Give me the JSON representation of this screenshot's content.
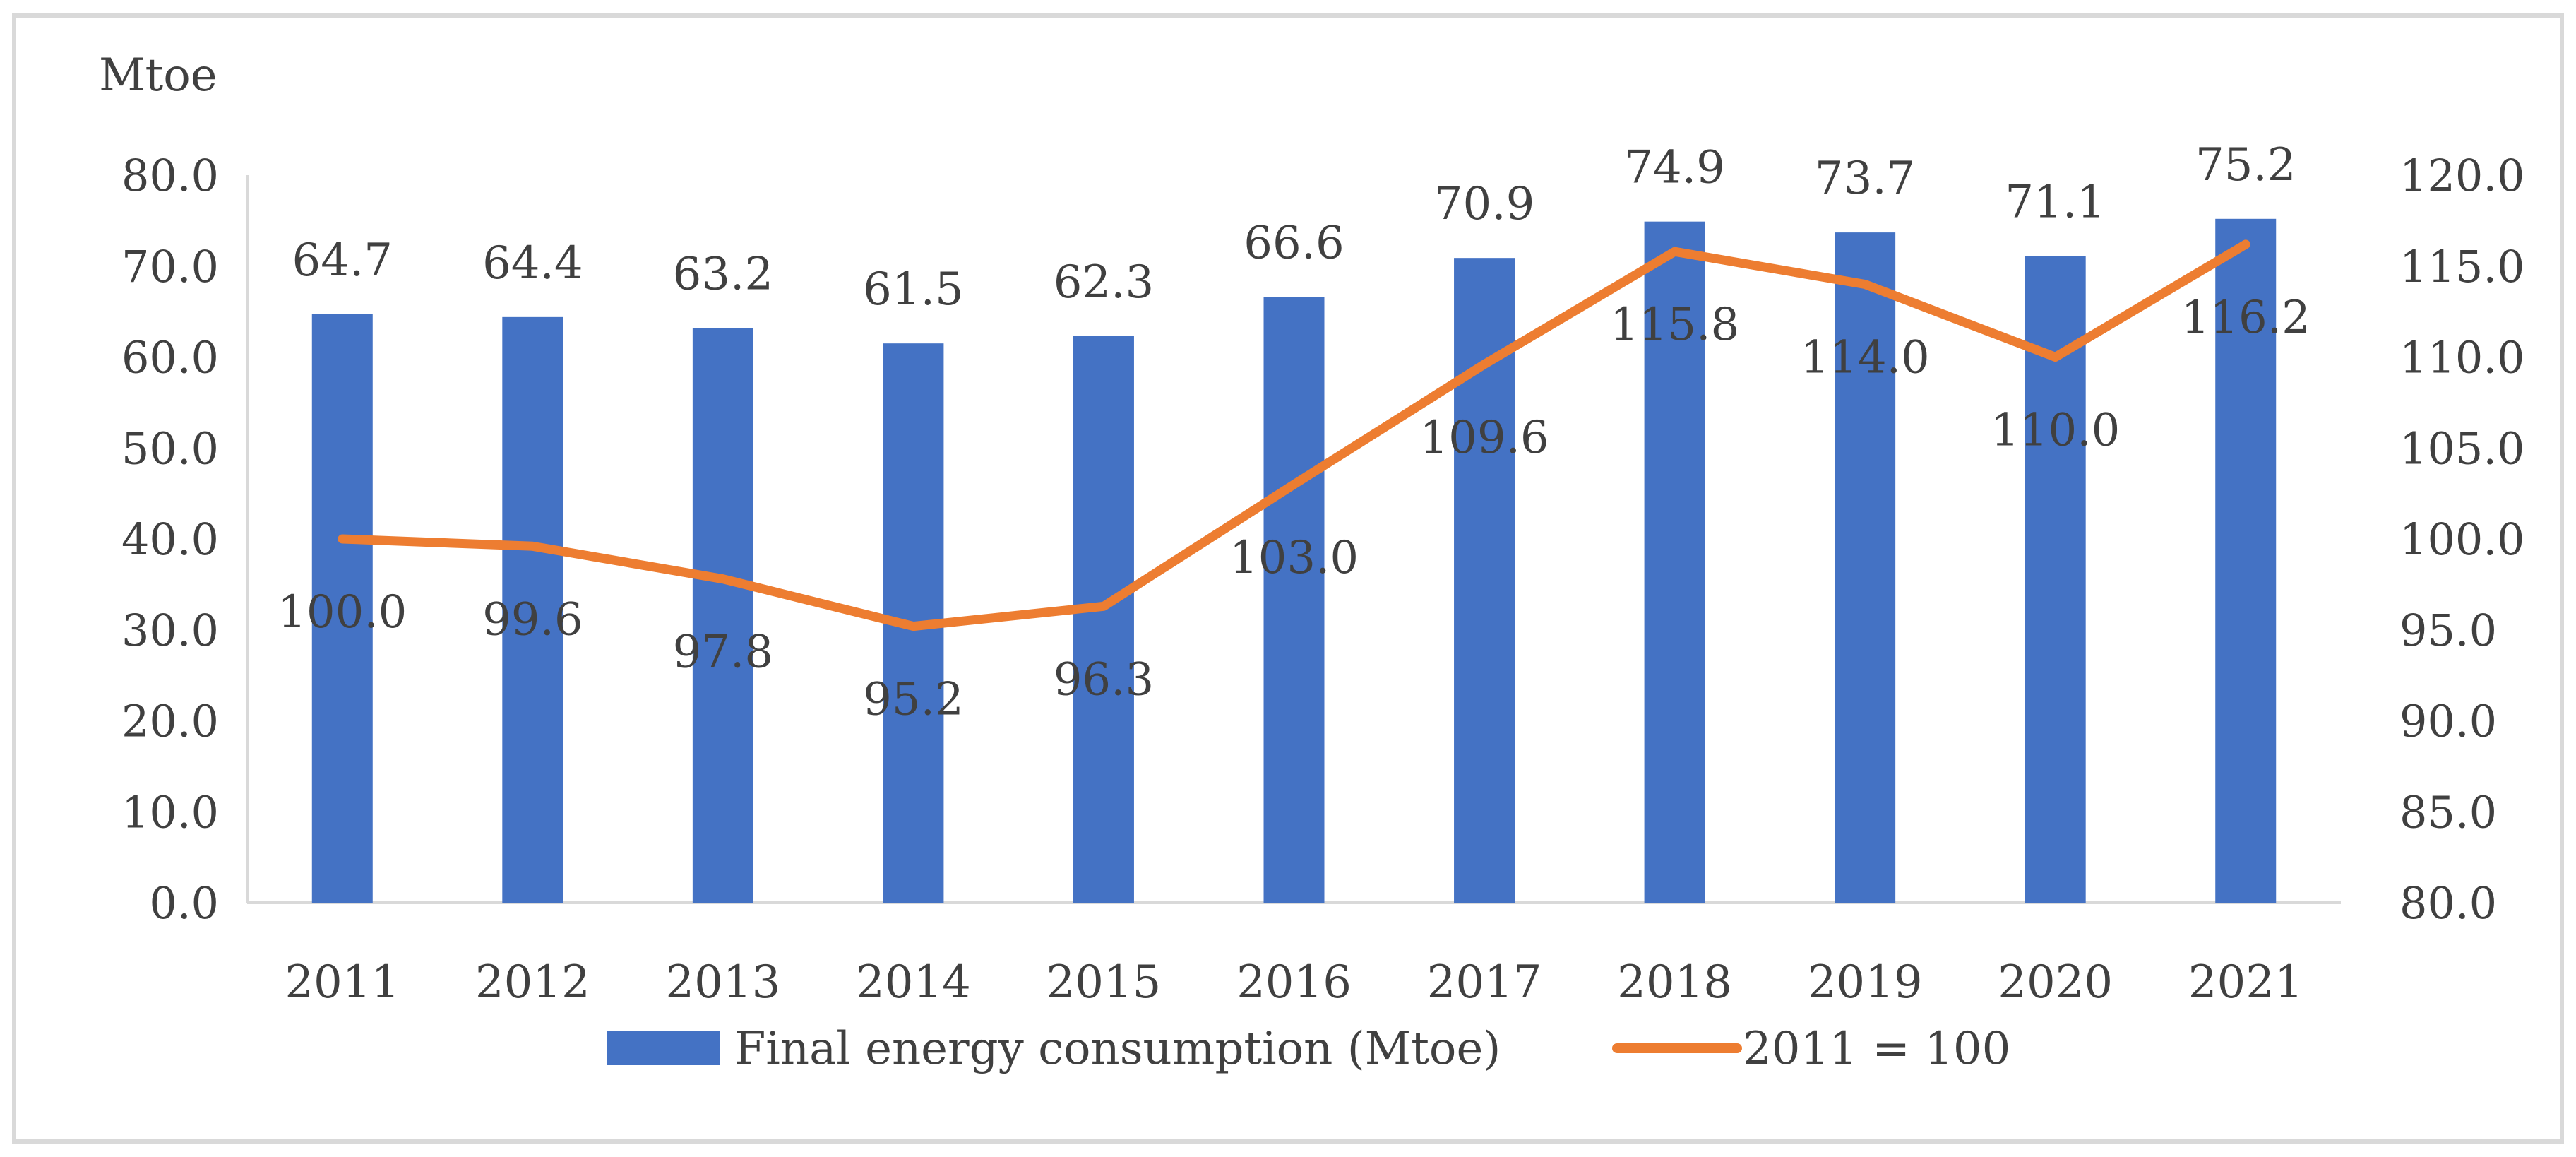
{
  "chart_data": {
    "type": "bar",
    "title": "",
    "ylabel": "Mtoe",
    "xlabel": "",
    "categories": [
      "2011",
      "2012",
      "2013",
      "2014",
      "2015",
      "2016",
      "2017",
      "2018",
      "2019",
      "2020",
      "2021"
    ],
    "series": [
      {
        "name": "Final energy consumption (Mtoe)",
        "type": "bar",
        "axis": "left",
        "color": "#4472C4",
        "values": [
          64.7,
          64.4,
          63.2,
          61.5,
          62.3,
          66.6,
          70.9,
          74.9,
          73.7,
          71.1,
          75.2
        ],
        "labels": [
          "64.7",
          "64.4",
          "63.2",
          "61.5",
          "62.3",
          "66.6",
          "70.9",
          "74.9",
          "73.7",
          "71.1",
          "75.2"
        ]
      },
      {
        "name": "2011 = 100",
        "type": "line",
        "axis": "right",
        "color": "#ED7D31",
        "values": [
          100.0,
          99.6,
          97.8,
          95.2,
          96.3,
          103.0,
          109.6,
          115.8,
          114.0,
          110.0,
          116.2
        ],
        "labels": [
          "100.0",
          "99.6",
          "97.8",
          "95.2",
          "96.3",
          "103.0",
          "109.6",
          "115.8",
          "114.0",
          "110.0",
          "116.2"
        ]
      }
    ],
    "ylim": [
      0,
      80
    ],
    "y2lim": [
      80,
      120
    ],
    "yticks": [
      "0.0",
      "10.0",
      "20.0",
      "30.0",
      "40.0",
      "50.0",
      "60.0",
      "70.0",
      "80.0"
    ],
    "y2ticks": [
      "80.0",
      "85.0",
      "90.0",
      "95.0",
      "100.0",
      "105.0",
      "110.0",
      "115.0",
      "120.0"
    ],
    "legend": "bottom",
    "grid": false
  }
}
